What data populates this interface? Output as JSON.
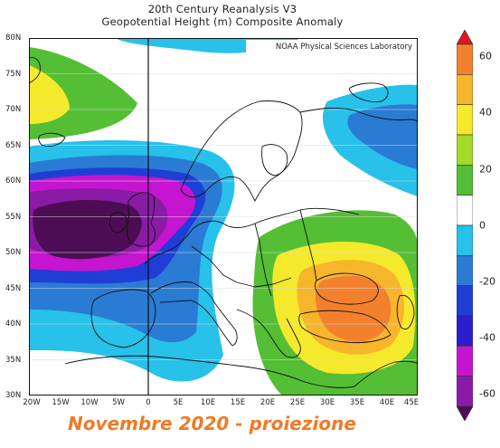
{
  "header": {
    "line1": "20th Century Reanalysis V3",
    "line2": "Geopotential Height (m) Composite Anomaly"
  },
  "map": {
    "credit": "NOAA Physical Sciences Laboratory",
    "lat_labels": [
      "80N",
      "75N",
      "70N",
      "65N",
      "60N",
      "55N",
      "50N",
      "45N",
      "40N",
      "35N",
      "30N"
    ],
    "lon_labels": [
      "20W",
      "15W",
      "10W",
      "5W",
      "0",
      "5E",
      "10E",
      "15E",
      "20E",
      "25E",
      "30E",
      "35E",
      "40E",
      "45E"
    ],
    "lat_range": [
      30,
      80
    ],
    "lon_range": [
      -20,
      45
    ]
  },
  "colorbar": {
    "labels": [
      "60",
      "40",
      "20",
      "0",
      "-20",
      "-40",
      "-60"
    ],
    "colors": [
      "#d9181f",
      "#f3802d",
      "#f7b52b",
      "#f5e92c",
      "#a2dc27",
      "#54be35",
      "#ffffff",
      "#27c1ea",
      "#2a7bd4",
      "#1f3ed6",
      "#2a1fd0",
      "#c515d0",
      "#8a1ba6",
      "#4d0d54"
    ]
  },
  "footer": {
    "caption": "Novembre 2020 - proiezione"
  },
  "colors": {
    "land_line": "#111111",
    "accent_caption": "#f07a26"
  }
}
